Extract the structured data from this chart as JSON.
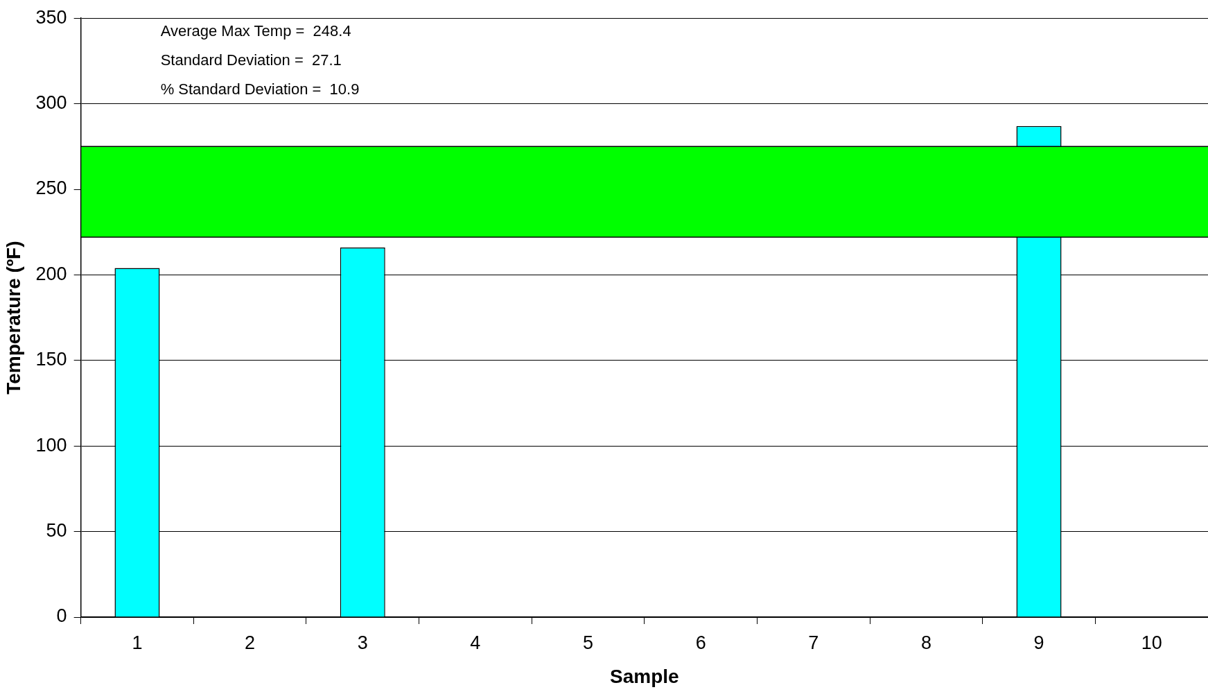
{
  "chart_data": {
    "type": "bar",
    "xlabel": "Sample",
    "ylabel": "Temperature (ºF)",
    "categories": [
      "1",
      "2",
      "3",
      "4",
      "5",
      "6",
      "7",
      "8",
      "9",
      "10"
    ],
    "values": [
      204,
      null,
      216,
      null,
      null,
      null,
      null,
      null,
      287,
      null
    ],
    "color": "#00ffff",
    "ylim": [
      0,
      350
    ],
    "yticks": [
      0,
      50,
      100,
      150,
      200,
      250,
      300,
      350
    ],
    "grid": "y",
    "legend": false,
    "bands": [
      {
        "axis": "y",
        "from": 222,
        "to": 275,
        "color": "#00ff00"
      }
    ],
    "annotations": [
      "Average Max Temp =  248.4",
      "Standard Deviation =  27.1",
      "% Standard Deviation =  10.9"
    ]
  }
}
